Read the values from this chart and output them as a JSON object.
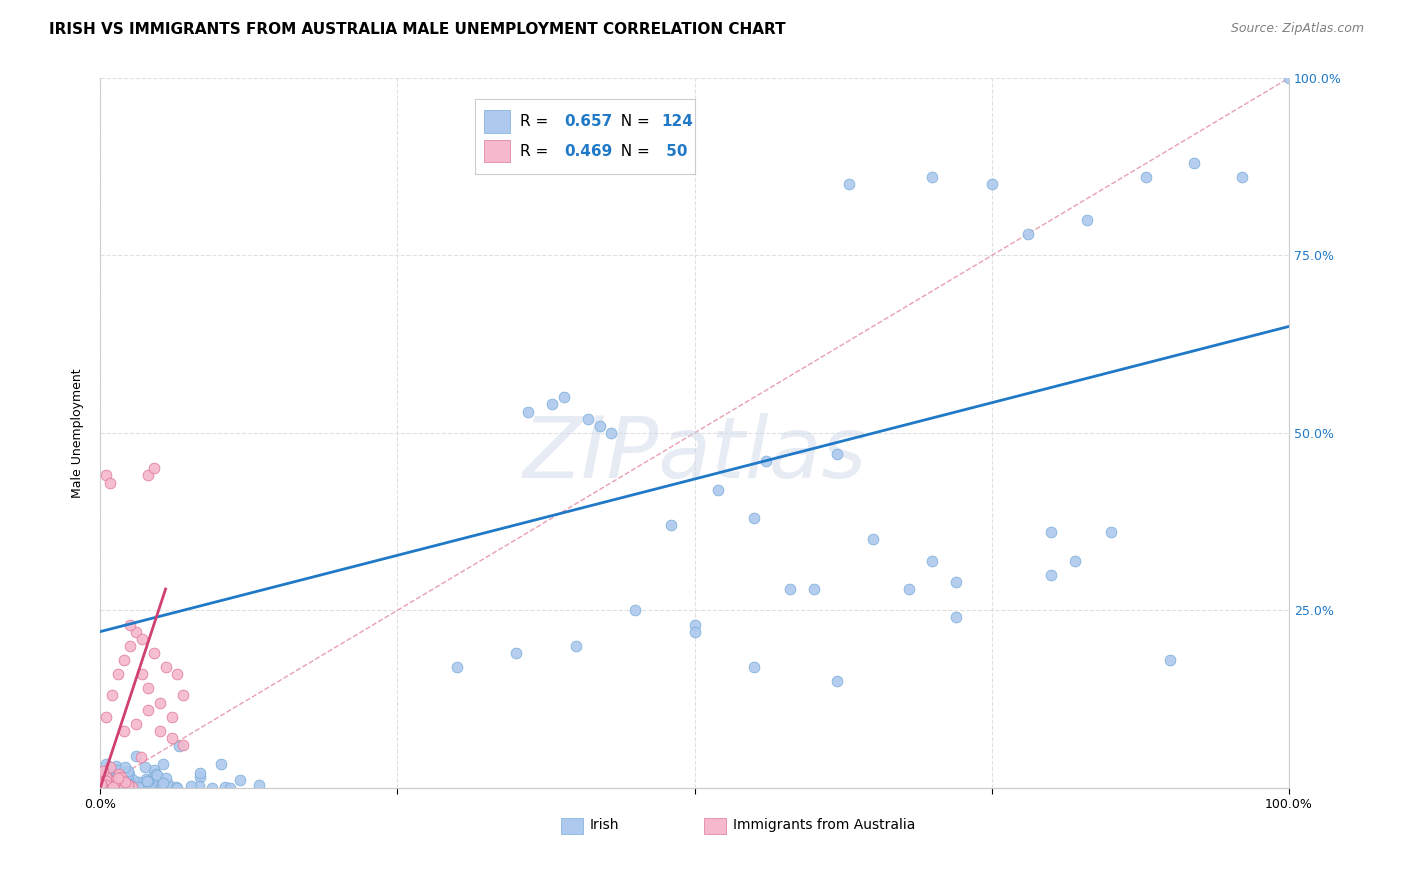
{
  "title": "IRISH VS IMMIGRANTS FROM AUSTRALIA MALE UNEMPLOYMENT CORRELATION CHART",
  "source": "Source: ZipAtlas.com",
  "ylabel": "Male Unemployment",
  "watermark": "ZIPatlas",
  "irish_R": 0.657,
  "irish_N": 124,
  "australia_R": 0.469,
  "australia_N": 50,
  "irish_color": "#adc9ee",
  "irish_edge_color": "#7aadd8",
  "australia_color": "#f5b8cc",
  "australia_edge_color": "#e07898",
  "irish_line_color": "#2079c7",
  "australia_line_color": "#d04070",
  "diagonal_color": "#e8a0b0",
  "background_color": "#ffffff",
  "grid_color": "#e0e0e0",
  "xlim": [
    0.0,
    1.0
  ],
  "ylim": [
    0.0,
    1.0
  ],
  "xticks": [
    0.0,
    0.25,
    0.5,
    0.75,
    1.0
  ],
  "xticklabels": [
    "0.0%",
    "",
    "",
    "",
    "100.0%"
  ],
  "yticks": [
    0.0,
    0.25,
    0.5,
    0.75,
    1.0
  ],
  "right_yticklabels": [
    "",
    "25.0%",
    "50.0%",
    "75.0%",
    "100.0%"
  ],
  "marker_size": 60,
  "title_fontsize": 11,
  "source_fontsize": 9,
  "axis_label_fontsize": 9,
  "tick_fontsize": 9,
  "right_tick_color": "#2079c7"
}
